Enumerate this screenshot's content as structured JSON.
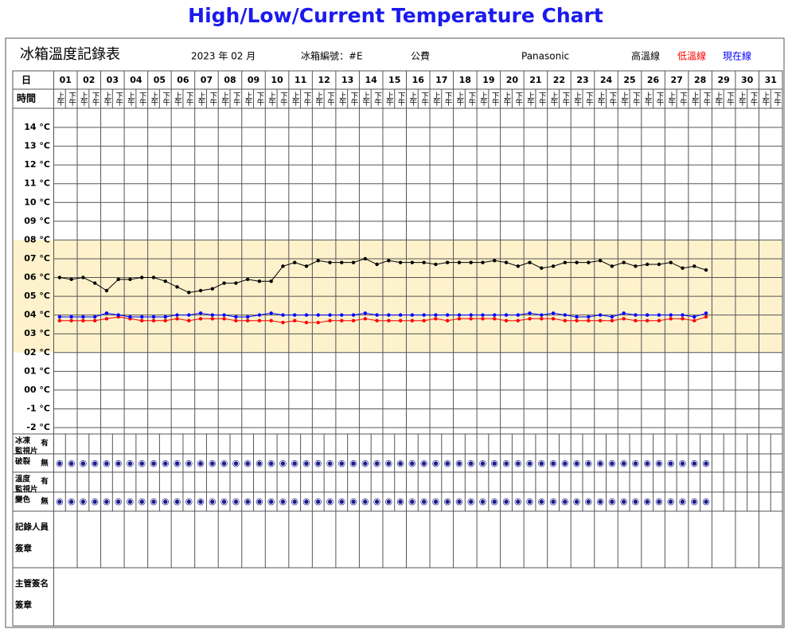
{
  "chart_data": {
    "type": "line",
    "title": "High/Low/Current Temperature Chart",
    "form_title": "冰箱溫度記錄表",
    "month": "2023 年 02 月",
    "fridge_id": "冰箱編號：#E",
    "funding": "公費",
    "brand": "Panasonic",
    "day_header": "日",
    "time_header": "時間",
    "days": [
      "01",
      "02",
      "03",
      "04",
      "05",
      "06",
      "07",
      "08",
      "09",
      "10",
      "11",
      "12",
      "13",
      "14",
      "15",
      "16",
      "17",
      "18",
      "19",
      "20",
      "21",
      "22",
      "23",
      "24",
      "25",
      "26",
      "27",
      "28",
      "29",
      "30",
      "31"
    ],
    "times": [
      "上午",
      "下午"
    ],
    "series": [
      {
        "name": "高溫線",
        "color": "#000000",
        "values": [
          6.0,
          5.9,
          6.0,
          5.7,
          5.3,
          5.9,
          5.9,
          6.0,
          6.0,
          5.8,
          5.5,
          5.2,
          5.3,
          5.4,
          5.7,
          5.7,
          5.9,
          5.8,
          5.8,
          6.6,
          6.8,
          6.6,
          6.9,
          6.8,
          6.8,
          6.8,
          7.0,
          6.7,
          6.9,
          6.8,
          6.8,
          6.8,
          6.7,
          6.8,
          6.8,
          6.8,
          6.8,
          6.9,
          6.8,
          6.6,
          6.8,
          6.5,
          6.6,
          6.8,
          6.8,
          6.8,
          6.9,
          6.6,
          6.8,
          6.6,
          6.7,
          6.7,
          6.8,
          6.5,
          6.6,
          6.4,
          null,
          null,
          null,
          null,
          null,
          null
        ]
      },
      {
        "name": "低溫線",
        "color": "#ff0000",
        "values": [
          3.7,
          3.7,
          3.7,
          3.7,
          3.8,
          3.9,
          3.8,
          3.7,
          3.7,
          3.7,
          3.8,
          3.7,
          3.8,
          3.8,
          3.8,
          3.7,
          3.7,
          3.7,
          3.7,
          3.6,
          3.7,
          3.6,
          3.6,
          3.7,
          3.7,
          3.7,
          3.8,
          3.7,
          3.7,
          3.7,
          3.7,
          3.7,
          3.8,
          3.7,
          3.8,
          3.8,
          3.8,
          3.8,
          3.7,
          3.7,
          3.8,
          3.8,
          3.8,
          3.7,
          3.7,
          3.7,
          3.7,
          3.7,
          3.8,
          3.7,
          3.7,
          3.7,
          3.8,
          3.8,
          3.7,
          3.9,
          null,
          null,
          null,
          null,
          null,
          null
        ]
      },
      {
        "name": "現在線",
        "color": "#0000ff",
        "values": [
          3.9,
          3.9,
          3.9,
          3.9,
          4.1,
          4.0,
          3.9,
          3.9,
          3.9,
          3.9,
          4.0,
          4.0,
          4.1,
          4.0,
          4.0,
          3.9,
          3.9,
          4.0,
          4.1,
          4.0,
          4.0,
          4.0,
          4.0,
          4.0,
          4.0,
          4.0,
          4.1,
          4.0,
          4.0,
          4.0,
          4.0,
          4.0,
          4.0,
          4.0,
          4.0,
          4.0,
          4.0,
          4.0,
          4.0,
          4.0,
          4.1,
          4.0,
          4.1,
          4.0,
          3.9,
          3.9,
          4.0,
          3.9,
          4.1,
          4.0,
          4.0,
          4.0,
          4.0,
          4.0,
          3.9,
          4.1,
          null,
          null,
          null,
          null,
          null,
          null
        ]
      }
    ],
    "ylim": [
      -2,
      14
    ],
    "yticks": [
      {
        "value": 14,
        "label": "14 °C"
      },
      {
        "value": 13,
        "label": "13 °C"
      },
      {
        "value": 12,
        "label": "12 °C"
      },
      {
        "value": 11,
        "label": "11 °C"
      },
      {
        "value": 10,
        "label": "10 °C"
      },
      {
        "value": 9,
        "label": "09 °C"
      },
      {
        "value": 8,
        "label": "08 °C"
      },
      {
        "value": 7,
        "label": "07 °C"
      },
      {
        "value": 6,
        "label": "06 °C"
      },
      {
        "value": 5,
        "label": "05 °C"
      },
      {
        "value": 4,
        "label": "04 °C"
      },
      {
        "value": 3,
        "label": "03 °C"
      },
      {
        "value": 2,
        "label": "02 °C"
      },
      {
        "value": 1,
        "label": "01 °C"
      },
      {
        "value": 0,
        "label": "00 °C"
      },
      {
        "value": -1,
        "label": "-1 °C"
      },
      {
        "value": -2,
        "label": "-2 °C"
      }
    ],
    "target_band": [
      2,
      8
    ],
    "band_color": "#fdf2cc",
    "grid": true,
    "indicator_rows": [
      {
        "label": [
          "冰凍",
          "監視片",
          "破裂"
        ]
      },
      {
        "label": [
          "溫度",
          "監視片",
          "變色"
        ]
      }
    ],
    "yes_label": "有",
    "no_label": "無",
    "no_mark": "◉",
    "signature_rows": [
      {
        "label": [
          "記錄人員",
          "簽章"
        ]
      },
      {
        "label": [
          "主管簽名",
          "簽章"
        ]
      }
    ]
  }
}
